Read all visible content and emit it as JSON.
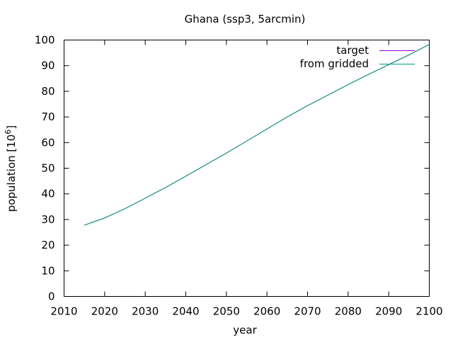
{
  "chart_data": {
    "type": "line",
    "title": "Ghana (ssp3, 5arcmin)",
    "xlabel": "year",
    "ylabel_base": "population [10",
    "ylabel_exp": "6",
    "ylabel_close": "]",
    "xlim": [
      2010,
      2100
    ],
    "ylim": [
      0,
      100
    ],
    "xticks": [
      2010,
      2020,
      2030,
      2040,
      2050,
      2060,
      2070,
      2080,
      2090,
      2100
    ],
    "yticks": [
      0,
      10,
      20,
      30,
      40,
      50,
      60,
      70,
      80,
      90,
      100
    ],
    "grid": false,
    "legend_position": "top-right",
    "series": [
      {
        "name": "target",
        "color": "#9400d3",
        "x": [
          2015,
          2020,
          2025,
          2030,
          2035,
          2040,
          2045,
          2050,
          2055,
          2060,
          2065,
          2070,
          2075,
          2080,
          2085,
          2090,
          2095,
          2100
        ],
        "y": [
          27.8,
          30.6,
          34.2,
          38.3,
          42.5,
          46.9,
          51.4,
          55.9,
          60.6,
          65.3,
          70.0,
          74.4,
          78.5,
          82.6,
          86.6,
          90.4,
          94.2,
          98.3
        ]
      },
      {
        "name": "from gridded",
        "color": "#009e73",
        "x": [
          2015,
          2020,
          2025,
          2030,
          2035,
          2040,
          2045,
          2050,
          2055,
          2060,
          2065,
          2070,
          2075,
          2080,
          2085,
          2090,
          2095,
          2100
        ],
        "y": [
          27.8,
          30.6,
          34.2,
          38.3,
          42.5,
          46.9,
          51.4,
          55.9,
          60.6,
          65.3,
          70.0,
          74.4,
          78.5,
          82.6,
          86.6,
          90.4,
          94.2,
          98.3
        ]
      }
    ]
  }
}
